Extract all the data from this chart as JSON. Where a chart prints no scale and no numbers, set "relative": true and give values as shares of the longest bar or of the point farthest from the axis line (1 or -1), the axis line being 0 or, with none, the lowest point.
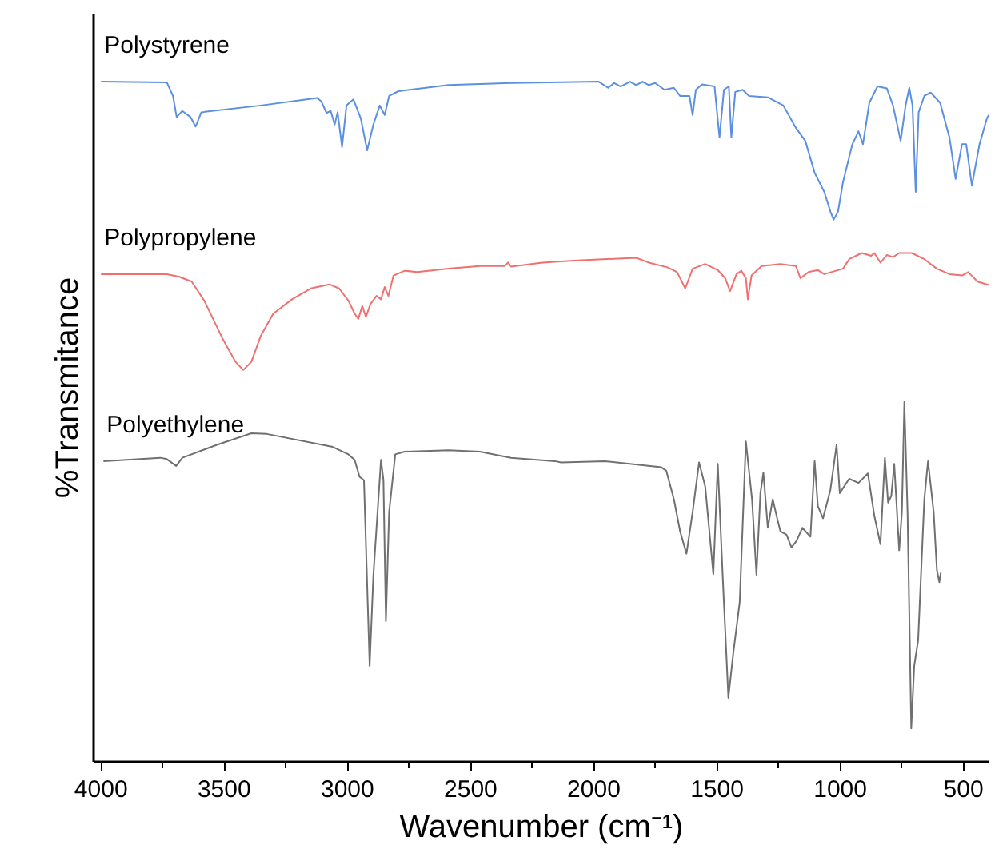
{
  "chart_data": {
    "type": "line",
    "relative": true,
    "xlabel": "Wavenumber (cm⁻¹)",
    "ylabel": "%Transmitance",
    "xlim": [
      4030,
      395
    ],
    "xticks": [
      4000,
      3500,
      3000,
      2500,
      2000,
      1500,
      1000,
      500
    ],
    "grid": false,
    "marker": "none",
    "line_style": "solid",
    "series": [
      {
        "name": "Polystyrene",
        "color": "#5b8fe0",
        "x": [
          4000,
          3733,
          3708,
          3693,
          3670,
          3637,
          3616,
          3593,
          3352,
          3123,
          3106,
          3085,
          3068,
          3052,
          3040,
          3022,
          3004,
          2976,
          2946,
          2920,
          2895,
          2869,
          2849,
          2831,
          2793,
          2590,
          2336,
          1980,
          1942,
          1917,
          1891,
          1853,
          1828,
          1802,
          1777,
          1751,
          1713,
          1675,
          1650,
          1612,
          1599,
          1586,
          1561,
          1510,
          1490,
          1472,
          1452,
          1442,
          1426,
          1396,
          1370,
          1294,
          1231,
          1180,
          1142,
          1104,
          1065,
          1040,
          1027,
          1009,
          989,
          951,
          926,
          908,
          882,
          849,
          811,
          786,
          755,
          735,
          720,
          707,
          694,
          682,
          659,
          633,
          595,
          557,
          532,
          506,
          489,
          466,
          435,
          405,
          397
        ],
        "values": [
          1.0,
          0.999,
          0.979,
          0.948,
          0.957,
          0.948,
          0.934,
          0.955,
          0.965,
          0.976,
          0.971,
          0.954,
          0.957,
          0.937,
          0.955,
          0.904,
          0.965,
          0.974,
          0.946,
          0.899,
          0.937,
          0.965,
          0.951,
          0.979,
          0.986,
          0.995,
          0.998,
          1.0,
          0.991,
          0.998,
          0.993,
          1.0,
          0.995,
          1.0,
          0.995,
          0.998,
          0.988,
          0.991,
          0.979,
          0.979,
          0.951,
          0.988,
          0.996,
          0.993,
          0.918,
          0.988,
          0.993,
          0.918,
          0.985,
          0.988,
          0.979,
          0.977,
          0.965,
          0.932,
          0.913,
          0.866,
          0.838,
          0.809,
          0.797,
          0.809,
          0.852,
          0.908,
          0.927,
          0.908,
          0.969,
          0.993,
          0.99,
          0.965,
          0.913,
          0.965,
          0.991,
          0.965,
          0.838,
          0.955,
          0.979,
          0.984,
          0.969,
          0.918,
          0.857,
          0.908,
          0.908,
          0.847,
          0.908,
          0.946,
          0.951
        ]
      },
      {
        "name": "Polypropylene",
        "color": "#f07070",
        "x": [
          4000,
          3733,
          3682,
          3632,
          3581,
          3505,
          3454,
          3423,
          3390,
          3352,
          3301,
          3225,
          3149,
          3073,
          3034,
          2996,
          2971,
          2956,
          2940,
          2925,
          2907,
          2882,
          2864,
          2849,
          2834,
          2813,
          2768,
          2717,
          2590,
          2463,
          2361,
          2348,
          2336,
          2209,
          2082,
          1828,
          1777,
          1701,
          1662,
          1629,
          1599,
          1548,
          1497,
          1467,
          1447,
          1421,
          1401,
          1383,
          1375,
          1360,
          1319,
          1243,
          1180,
          1162,
          1129,
          1091,
          1065,
          989,
          964,
          913,
          875,
          862,
          837,
          811,
          786,
          761,
          710,
          659,
          608,
          557,
          506,
          481,
          443,
          397
        ],
        "values": [
          0.717,
          0.717,
          0.713,
          0.706,
          0.678,
          0.621,
          0.588,
          0.576,
          0.588,
          0.626,
          0.659,
          0.68,
          0.696,
          0.702,
          0.696,
          0.678,
          0.659,
          0.651,
          0.67,
          0.654,
          0.673,
          0.685,
          0.68,
          0.698,
          0.685,
          0.715,
          0.722,
          0.72,
          0.725,
          0.729,
          0.729,
          0.734,
          0.728,
          0.734,
          0.737,
          0.741,
          0.734,
          0.727,
          0.72,
          0.696,
          0.725,
          0.732,
          0.723,
          0.711,
          0.692,
          0.717,
          0.722,
          0.711,
          0.68,
          0.715,
          0.729,
          0.732,
          0.729,
          0.711,
          0.72,
          0.723,
          0.717,
          0.725,
          0.739,
          0.748,
          0.744,
          0.748,
          0.734,
          0.745,
          0.742,
          0.748,
          0.748,
          0.739,
          0.725,
          0.717,
          0.715,
          0.72,
          0.706,
          0.701
        ]
      },
      {
        "name": "Polyethylene",
        "color": "#707070",
        "x": [
          3990,
          3759,
          3733,
          3695,
          3670,
          3530,
          3390,
          3327,
          3060,
          2996,
          2971,
          2951,
          2933,
          2910,
          2895,
          2864,
          2854,
          2844,
          2831,
          2806,
          2768,
          2590,
          2463,
          2336,
          2158,
          2133,
          1955,
          1726,
          1706,
          1675,
          1650,
          1624,
          1599,
          1573,
          1548,
          1515,
          1497,
          1477,
          1454,
          1434,
          1408,
          1383,
          1358,
          1340,
          1324,
          1312,
          1294,
          1274,
          1256,
          1243,
          1218,
          1198,
          1177,
          1154,
          1121,
          1104,
          1091,
          1070,
          1040,
          1015,
          1002,
          964,
          926,
          888,
          862,
          837,
          819,
          806,
          793,
          781,
          761,
          750,
          740,
          727,
          712,
          700,
          684,
          659,
          644,
          621,
          608,
          598,
          592
        ],
        "values": [
          0.442,
          0.447,
          0.445,
          0.435,
          0.447,
          0.466,
          0.483,
          0.482,
          0.463,
          0.452,
          0.444,
          0.419,
          0.414,
          0.141,
          0.273,
          0.444,
          0.414,
          0.207,
          0.367,
          0.452,
          0.456,
          0.458,
          0.456,
          0.447,
          0.442,
          0.44,
          0.442,
          0.433,
          0.428,
          0.386,
          0.339,
          0.306,
          0.367,
          0.44,
          0.405,
          0.276,
          0.438,
          0.273,
          0.094,
          0.16,
          0.235,
          0.471,
          0.386,
          0.275,
          0.395,
          0.425,
          0.344,
          0.386,
          0.358,
          0.339,
          0.334,
          0.315,
          0.325,
          0.344,
          0.331,
          0.442,
          0.376,
          0.358,
          0.4,
          0.466,
          0.395,
          0.416,
          0.41,
          0.424,
          0.362,
          0.32,
          0.447,
          0.381,
          0.391,
          0.438,
          0.311,
          0.367,
          0.529,
          0.367,
          0.049,
          0.141,
          0.179,
          0.386,
          0.442,
          0.367,
          0.282,
          0.264,
          0.278
        ]
      }
    ]
  }
}
